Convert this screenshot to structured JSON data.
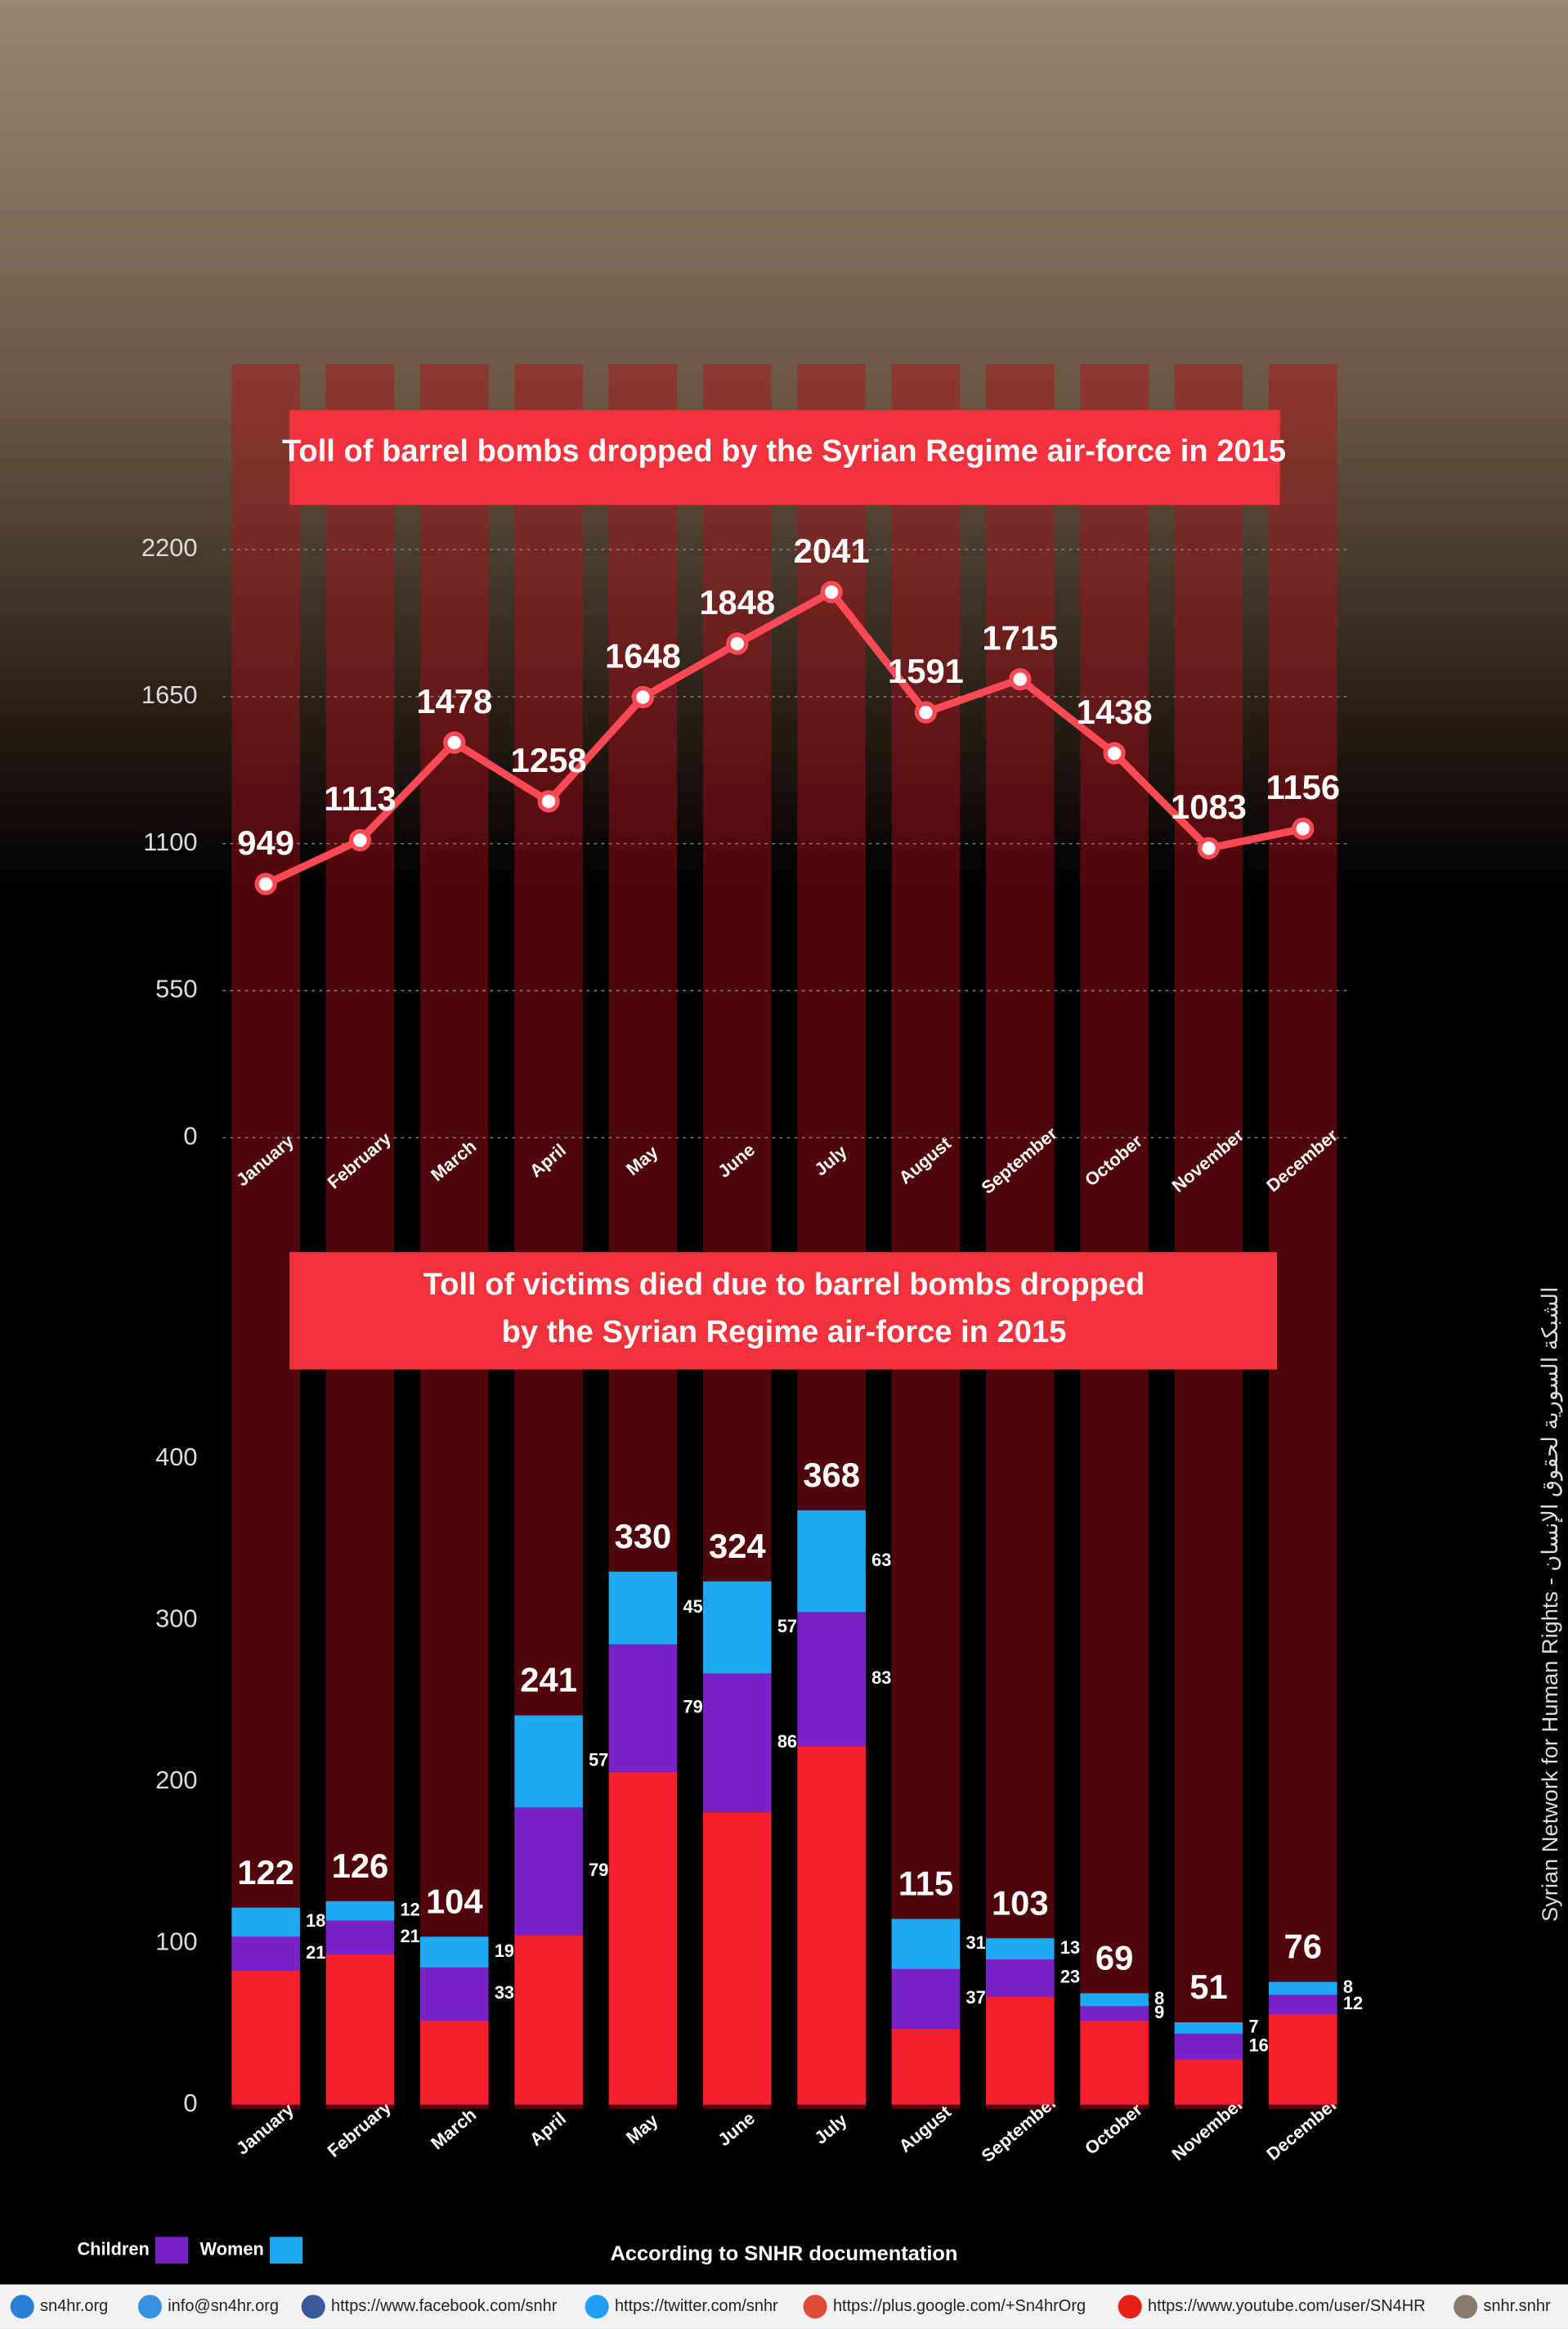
{
  "chart_data": [
    {
      "type": "line",
      "title": "Toll of barrel bombs dropped by the Syrian Regime air-force in 2015",
      "categories": [
        "January",
        "February",
        "March",
        "April",
        "May",
        "June",
        "July",
        "August",
        "September",
        "October",
        "November",
        "December"
      ],
      "values": [
        949,
        1113,
        1478,
        1258,
        1648,
        1848,
        2041,
        1591,
        1715,
        1438,
        1083,
        1156
      ],
      "color": "#ff4a55",
      "ylim": [
        0,
        2200
      ],
      "yticks": [
        0,
        550,
        1100,
        1650,
        2200
      ],
      "grid": true
    },
    {
      "type": "stacked_bar",
      "title": [
        "Toll of victims died due to barrel bombs dropped",
        "by the Syrian Regime air-force in 2015"
      ],
      "categories": [
        "January",
        "February",
        "March",
        "April",
        "May",
        "June",
        "July",
        "August",
        "September",
        "October",
        "November",
        "December"
      ],
      "series": [
        {
          "color": "#f5202e",
          "values": [
            83,
            93,
            52,
            105,
            206,
            181,
            222,
            47,
            67,
            52,
            28,
            56
          ]
        },
        {
          "name": "Children",
          "color": "#7a22c8",
          "values": [
            21,
            21,
            33,
            79,
            79,
            86,
            83,
            37,
            23,
            9,
            16,
            12
          ]
        },
        {
          "name": "Women",
          "color": "#1eaaf2",
          "values": [
            18,
            12,
            19,
            57,
            45,
            57,
            63,
            31,
            13,
            8,
            7,
            8
          ]
        }
      ],
      "totals": [
        122,
        126,
        104,
        241,
        330,
        324,
        368,
        115,
        103,
        69,
        51,
        76
      ],
      "ylim": [
        0,
        400
      ],
      "yticks": [
        0,
        100,
        200,
        300,
        400
      ],
      "grid": false
    }
  ],
  "source": "According to SNHR documentation",
  "side_text": "Syrian Network for Human Rights - الشبكة السورية لحقوق الإنسان",
  "footer": [
    "sn4hr.org",
    "info@sn4hr.org",
    "https://www.facebook.com/snhr",
    "https://twitter.com/snhr",
    "https://plus.google.com/+Sn4hrOrg",
    "https://www.youtube.com/user/SN4HR",
    "snhr.snhr"
  ]
}
